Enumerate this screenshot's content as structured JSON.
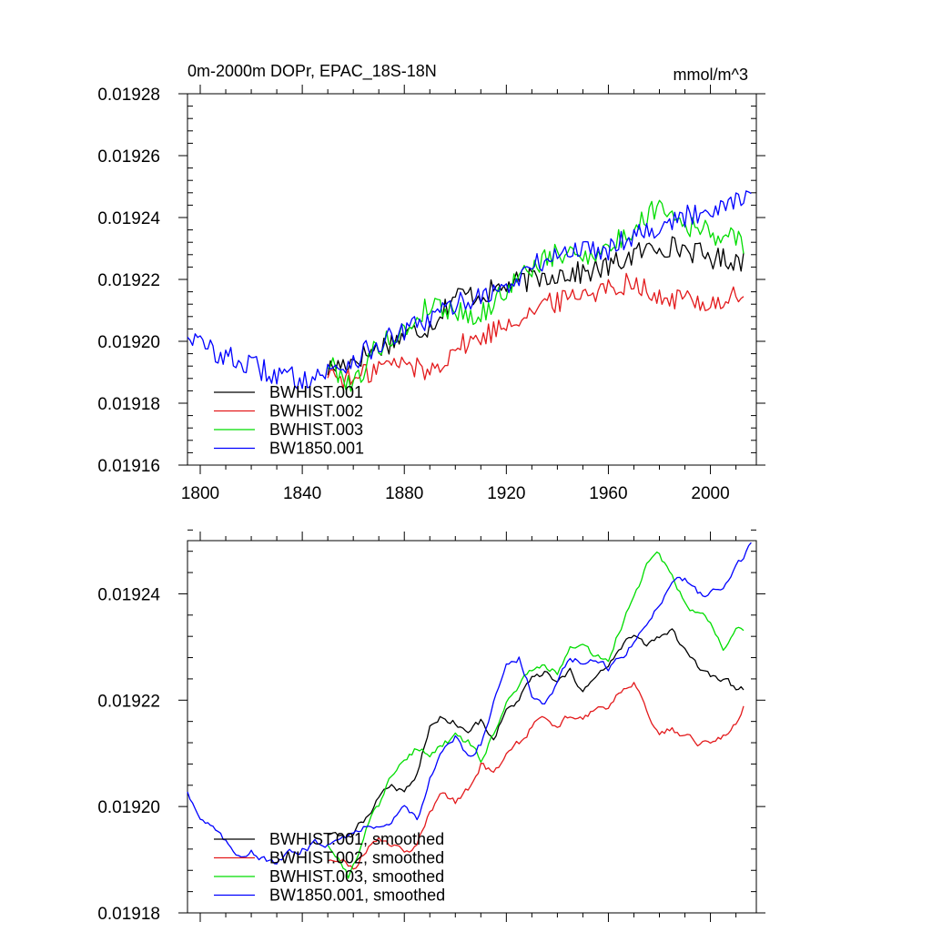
{
  "chart_data": [
    {
      "type": "line",
      "title": "0m-2000m DOPr, EPAC_18S-18N",
      "units_label": "mmol/m^3",
      "xlabel": "",
      "ylabel": "",
      "xlim": [
        1795,
        2018
      ],
      "ylim": [
        0.01916,
        0.01928
      ],
      "x_ticks": [
        1800,
        1840,
        1880,
        1920,
        1960,
        2000
      ],
      "x_tick_labels": [
        "1800",
        "1840",
        "1880",
        "1920",
        "1960",
        "2000"
      ],
      "y_ticks": [
        0.01916,
        0.01918,
        0.0192,
        0.01922,
        0.01924,
        0.01926,
        0.01928
      ],
      "y_tick_labels": [
        "0.01916",
        "0.01918",
        "0.01920",
        "0.01922",
        "0.01924",
        "0.01926",
        "0.01928"
      ],
      "legend_position": "bottom-left",
      "series": [
        {
          "name": "BWHIST.001",
          "color": "#000000",
          "style": "noisy",
          "keypoints": [
            [
              1850,
              0.019191
            ],
            [
              1860,
              0.019194
            ],
            [
              1870,
              0.019198
            ],
            [
              1880,
              0.019202
            ],
            [
              1890,
              0.019205
            ],
            [
              1900,
              0.019215
            ],
            [
              1910,
              0.019215
            ],
            [
              1920,
              0.019218
            ],
            [
              1930,
              0.01922
            ],
            [
              1940,
              0.019222
            ],
            [
              1950,
              0.019222
            ],
            [
              1960,
              0.019224
            ],
            [
              1970,
              0.019228
            ],
            [
              1980,
              0.019231
            ],
            [
              1990,
              0.01923
            ],
            [
              2000,
              0.019227
            ],
            [
              2013,
              0.019226
            ]
          ]
        },
        {
          "name": "BWHIST.002",
          "color": "#e31a1c",
          "style": "noisy",
          "keypoints": [
            [
              1850,
              0.01919
            ],
            [
              1860,
              0.019187
            ],
            [
              1870,
              0.019192
            ],
            [
              1880,
              0.019193
            ],
            [
              1890,
              0.01919
            ],
            [
              1900,
              0.019198
            ],
            [
              1910,
              0.019201
            ],
            [
              1920,
              0.019206
            ],
            [
              1930,
              0.01921
            ],
            [
              1940,
              0.019213
            ],
            [
              1950,
              0.019216
            ],
            [
              1960,
              0.019217
            ],
            [
              1970,
              0.01922
            ],
            [
              1980,
              0.019213
            ],
            [
              1990,
              0.019214
            ],
            [
              2000,
              0.019212
            ],
            [
              2013,
              0.019215
            ]
          ]
        },
        {
          "name": "BWHIST.003",
          "color": "#00dd00",
          "style": "noisy",
          "keypoints": [
            [
              1850,
              0.019193
            ],
            [
              1860,
              0.019186
            ],
            [
              1870,
              0.019199
            ],
            [
              1880,
              0.019203
            ],
            [
              1890,
              0.019212
            ],
            [
              1900,
              0.01921
            ],
            [
              1910,
              0.019208
            ],
            [
              1920,
              0.019217
            ],
            [
              1930,
              0.019224
            ],
            [
              1940,
              0.019228
            ],
            [
              1950,
              0.019228
            ],
            [
              1960,
              0.01923
            ],
            [
              1970,
              0.019236
            ],
            [
              1980,
              0.019245
            ],
            [
              1990,
              0.019238
            ],
            [
              2000,
              0.019235
            ],
            [
              2013,
              0.019232
            ]
          ]
        },
        {
          "name": "BW1850.001",
          "color": "#0000ff",
          "style": "noisy",
          "keypoints": [
            [
              1795,
              0.019203
            ],
            [
              1800,
              0.019199
            ],
            [
              1810,
              0.019195
            ],
            [
              1820,
              0.019192
            ],
            [
              1830,
              0.019189
            ],
            [
              1840,
              0.019188
            ],
            [
              1850,
              0.01919
            ],
            [
              1860,
              0.019194
            ],
            [
              1870,
              0.019199
            ],
            [
              1880,
              0.019203
            ],
            [
              1890,
              0.019207
            ],
            [
              1900,
              0.019212
            ],
            [
              1910,
              0.019215
            ],
            [
              1920,
              0.019217
            ],
            [
              1930,
              0.019224
            ],
            [
              1940,
              0.019228
            ],
            [
              1950,
              0.01923
            ],
            [
              1960,
              0.01923
            ],
            [
              1970,
              0.019235
            ],
            [
              1980,
              0.019237
            ],
            [
              1990,
              0.01924
            ],
            [
              2000,
              0.019243
            ],
            [
              2010,
              0.019246
            ],
            [
              2016,
              0.019249
            ]
          ]
        }
      ]
    },
    {
      "type": "line",
      "title": "",
      "xlabel": "",
      "ylabel": "",
      "xlim": [
        1795,
        2018
      ],
      "ylim": [
        0.01918,
        0.01925
      ],
      "x_ticks": [
        1800,
        1840,
        1880,
        1920,
        1960,
        2000
      ],
      "x_tick_labels": [],
      "y_ticks": [
        0.01918,
        0.0192,
        0.01922,
        0.01924
      ],
      "y_tick_labels": [
        "0.01918",
        "0.01920",
        "0.01922",
        "0.01924"
      ],
      "legend_position": "bottom-left",
      "series": [
        {
          "name": "BWHIST.001, smoothed",
          "color": "#000000",
          "style": "smooth",
          "keypoints": [
            [
              1850,
              0.019195
            ],
            [
              1855,
              0.019194
            ],
            [
              1860,
              0.019195
            ],
            [
              1865,
              0.019198
            ],
            [
              1870,
              0.019202
            ],
            [
              1875,
              0.019204
            ],
            [
              1880,
              0.019203
            ],
            [
              1885,
              0.019206
            ],
            [
              1890,
              0.019215
            ],
            [
              1895,
              0.019217
            ],
            [
              1900,
              0.019216
            ],
            [
              1905,
              0.019214
            ],
            [
              1910,
              0.019216
            ],
            [
              1915,
              0.019213
            ],
            [
              1920,
              0.019218
            ],
            [
              1925,
              0.01922
            ],
            [
              1930,
              0.019224
            ],
            [
              1935,
              0.019225
            ],
            [
              1940,
              0.019223
            ],
            [
              1945,
              0.019225
            ],
            [
              1950,
              0.019222
            ],
            [
              1955,
              0.019224
            ],
            [
              1960,
              0.019226
            ],
            [
              1965,
              0.01923
            ],
            [
              1970,
              0.019232
            ],
            [
              1975,
              0.01923
            ],
            [
              1980,
              0.019232
            ],
            [
              1985,
              0.019233
            ],
            [
              1990,
              0.019229
            ],
            [
              1995,
              0.019226
            ],
            [
              2000,
              0.019224
            ],
            [
              2005,
              0.019224
            ],
            [
              2010,
              0.019222
            ],
            [
              2013,
              0.019222
            ]
          ]
        },
        {
          "name": "BWHIST.002, smoothed",
          "color": "#e31a1c",
          "style": "smooth",
          "keypoints": [
            [
              1850,
              0.01919
            ],
            [
              1855,
              0.019191
            ],
            [
              1860,
              0.019188
            ],
            [
              1865,
              0.019192
            ],
            [
              1870,
              0.019194
            ],
            [
              1875,
              0.019193
            ],
            [
              1880,
              0.019191
            ],
            [
              1885,
              0.019193
            ],
            [
              1890,
              0.019199
            ],
            [
              1895,
              0.019203
            ],
            [
              1900,
              0.019201
            ],
            [
              1905,
              0.019203
            ],
            [
              1910,
              0.019208
            ],
            [
              1915,
              0.019206
            ],
            [
              1920,
              0.01921
            ],
            [
              1925,
              0.019212
            ],
            [
              1930,
              0.019215
            ],
            [
              1935,
              0.019217
            ],
            [
              1940,
              0.019215
            ],
            [
              1945,
              0.019217
            ],
            [
              1950,
              0.019217
            ],
            [
              1955,
              0.019218
            ],
            [
              1960,
              0.019219
            ],
            [
              1965,
              0.019222
            ],
            [
              1970,
              0.019223
            ],
            [
              1975,
              0.019218
            ],
            [
              1980,
              0.019213
            ],
            [
              1985,
              0.019215
            ],
            [
              1990,
              0.019213
            ],
            [
              1995,
              0.019212
            ],
            [
              2000,
              0.019212
            ],
            [
              2005,
              0.019213
            ],
            [
              2010,
              0.019216
            ],
            [
              2013,
              0.019219
            ]
          ]
        },
        {
          "name": "BWHIST.003, smoothed",
          "color": "#00dd00",
          "style": "smooth",
          "keypoints": [
            [
              1850,
              0.019193
            ],
            [
              1855,
              0.01919
            ],
            [
              1858,
              0.019187
            ],
            [
              1862,
              0.019191
            ],
            [
              1865,
              0.019196
            ],
            [
              1870,
              0.0192
            ],
            [
              1875,
              0.019206
            ],
            [
              1880,
              0.019208
            ],
            [
              1885,
              0.019211
            ],
            [
              1890,
              0.01921
            ],
            [
              1895,
              0.019212
            ],
            [
              1900,
              0.019213
            ],
            [
              1905,
              0.019212
            ],
            [
              1910,
              0.019209
            ],
            [
              1915,
              0.019214
            ],
            [
              1920,
              0.01922
            ],
            [
              1925,
              0.019223
            ],
            [
              1930,
              0.019226
            ],
            [
              1935,
              0.019227
            ],
            [
              1940,
              0.019225
            ],
            [
              1945,
              0.01923
            ],
            [
              1950,
              0.01923
            ],
            [
              1955,
              0.019228
            ],
            [
              1960,
              0.019228
            ],
            [
              1965,
              0.019234
            ],
            [
              1970,
              0.01924
            ],
            [
              1975,
              0.019245
            ],
            [
              1980,
              0.019247
            ],
            [
              1985,
              0.019244
            ],
            [
              1990,
              0.019238
            ],
            [
              1995,
              0.019236
            ],
            [
              2000,
              0.019235
            ],
            [
              2005,
              0.01923
            ],
            [
              2010,
              0.019233
            ],
            [
              2013,
              0.019233
            ]
          ]
        },
        {
          "name": "BW1850.001, smoothed",
          "color": "#0000ff",
          "style": "smooth",
          "keypoints": [
            [
              1795,
              0.019203
            ],
            [
              1800,
              0.019198
            ],
            [
              1805,
              0.019196
            ],
            [
              1810,
              0.019193
            ],
            [
              1815,
              0.019191
            ],
            [
              1820,
              0.019192
            ],
            [
              1825,
              0.01919
            ],
            [
              1830,
              0.019189
            ],
            [
              1835,
              0.019191
            ],
            [
              1840,
              0.019192
            ],
            [
              1845,
              0.019193
            ],
            [
              1850,
              0.019193
            ],
            [
              1855,
              0.019195
            ],
            [
              1860,
              0.019195
            ],
            [
              1865,
              0.019196
            ],
            [
              1870,
              0.019197
            ],
            [
              1875,
              0.019197
            ],
            [
              1880,
              0.0192
            ],
            [
              1885,
              0.019198
            ],
            [
              1890,
              0.019205
            ],
            [
              1895,
              0.01921
            ],
            [
              1900,
              0.019213
            ],
            [
              1905,
              0.019209
            ],
            [
              1910,
              0.019212
            ],
            [
              1915,
              0.01922
            ],
            [
              1920,
              0.019227
            ],
            [
              1925,
              0.019228
            ],
            [
              1930,
              0.019221
            ],
            [
              1935,
              0.019219
            ],
            [
              1940,
              0.019223
            ],
            [
              1945,
              0.019228
            ],
            [
              1950,
              0.019227
            ],
            [
              1955,
              0.019227
            ],
            [
              1960,
              0.019226
            ],
            [
              1965,
              0.019228
            ],
            [
              1970,
              0.019231
            ],
            [
              1975,
              0.019234
            ],
            [
              1980,
              0.019238
            ],
            [
              1985,
              0.019243
            ],
            [
              1990,
              0.019243
            ],
            [
              1995,
              0.01924
            ],
            [
              2000,
              0.01924
            ],
            [
              2005,
              0.019241
            ],
            [
              2010,
              0.019245
            ],
            [
              2016,
              0.019249
            ]
          ]
        }
      ]
    }
  ]
}
